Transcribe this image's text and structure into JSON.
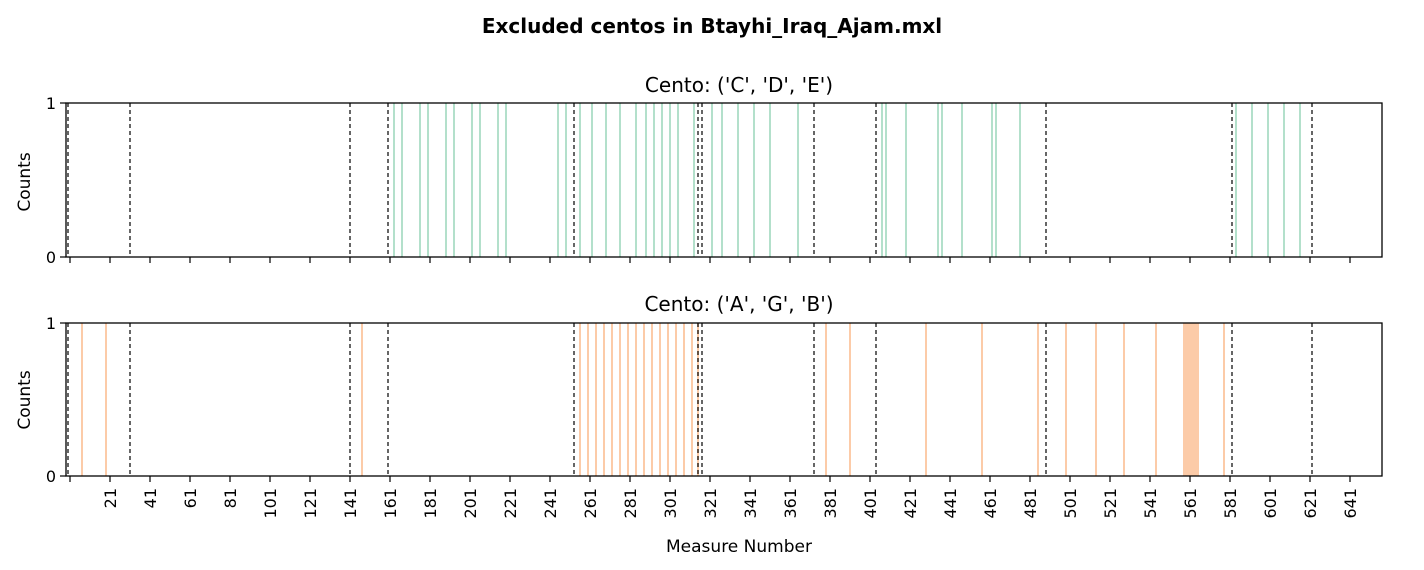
{
  "title": "Excluded centos in Btayhi_Iraq_Ajam.mxl",
  "xlabel": "Measure Number",
  "xticks": [
    21,
    41,
    61,
    81,
    101,
    121,
    141,
    161,
    181,
    201,
    221,
    241,
    261,
    281,
    301,
    321,
    341,
    361,
    381,
    401,
    421,
    441,
    461,
    481,
    501,
    521,
    541,
    561,
    581,
    601,
    621,
    641
  ],
  "xlim": [
    -1,
    657
  ],
  "section_lines": [
    0,
    31,
    141,
    160,
    253,
    315,
    317,
    373,
    404,
    489,
    582,
    622
  ],
  "chart_data": [
    {
      "type": "bar",
      "title": "Cento: ('C', 'D', 'E')",
      "ylabel": "Counts",
      "yticks": [
        "0",
        "1"
      ],
      "ylim": [
        0,
        1
      ],
      "color": "#b3e0cb",
      "x": [
        163,
        167,
        176,
        180,
        189,
        193,
        202,
        206,
        215,
        219,
        245,
        249,
        256,
        262,
        269,
        276,
        284,
        289,
        293,
        297,
        301,
        305,
        313,
        322,
        327,
        335,
        343,
        351,
        365,
        407,
        409,
        419,
        435,
        437,
        447,
        462,
        464,
        476,
        584,
        592,
        600,
        608,
        616
      ],
      "values": [
        1,
        1,
        1,
        1,
        1,
        1,
        1,
        1,
        1,
        1,
        1,
        1,
        1,
        1,
        1,
        1,
        1,
        1,
        1,
        1,
        1,
        1,
        1,
        1,
        1,
        1,
        1,
        1,
        1,
        1,
        1,
        1,
        1,
        1,
        1,
        1,
        1,
        1,
        1,
        1,
        1,
        1,
        1
      ]
    },
    {
      "type": "bar",
      "title": "Cento: ('A', 'G', 'B')",
      "ylabel": "Counts",
      "yticks": [
        "0",
        "1"
      ],
      "ylim": [
        0,
        1
      ],
      "color": "#fccba8",
      "x": [
        7,
        19,
        147,
        256,
        260,
        264,
        268,
        272,
        276,
        280,
        284,
        288,
        292,
        296,
        300,
        304,
        308,
        312,
        315,
        379,
        391,
        429,
        457,
        485,
        499,
        514,
        528,
        544,
        558,
        559,
        560,
        561,
        562,
        563,
        564,
        565,
        578
      ],
      "values": [
        1,
        1,
        1,
        1,
        1,
        1,
        1,
        1,
        1,
        1,
        1,
        1,
        1,
        1,
        1,
        1,
        1,
        1,
        1,
        1,
        1,
        1,
        1,
        1,
        1,
        1,
        1,
        1,
        1,
        1,
        1,
        1,
        1,
        1,
        1,
        1,
        1
      ]
    }
  ]
}
